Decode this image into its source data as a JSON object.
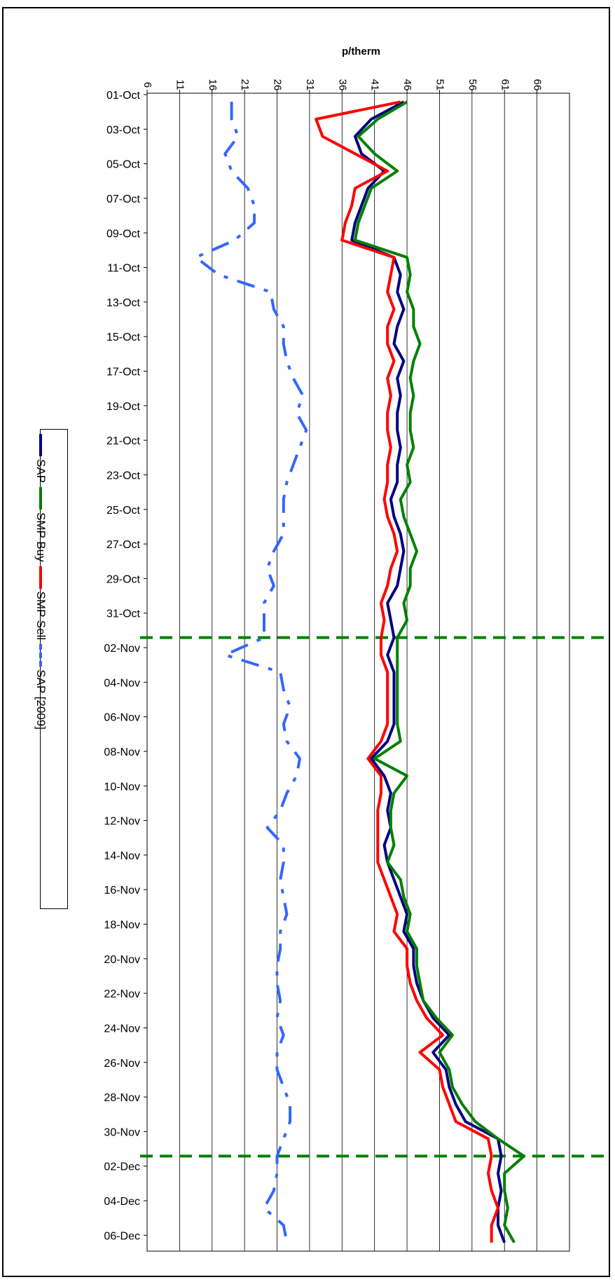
{
  "chart_data": {
    "type": "line",
    "orientation": "rotated-90",
    "title": "",
    "ylabel": "p/therm",
    "xlabel": "",
    "ylim": [
      6,
      71
    ],
    "y_ticks": [
      6,
      11,
      16,
      21,
      26,
      31,
      36,
      41,
      46,
      51,
      56,
      61,
      66
    ],
    "grid": true,
    "legend_position": "left",
    "x_tick_labels": [
      "01-Oct",
      "03-Oct",
      "05-Oct",
      "07-Oct",
      "09-Oct",
      "11-Oct",
      "13-Oct",
      "15-Oct",
      "17-Oct",
      "19-Oct",
      "21-Oct",
      "23-Oct",
      "25-Oct",
      "27-Oct",
      "29-Oct",
      "31-Oct",
      "02-Nov",
      "04-Nov",
      "06-Nov",
      "08-Nov",
      "10-Nov",
      "12-Nov",
      "14-Nov",
      "16-Nov",
      "18-Nov",
      "20-Nov",
      "22-Nov",
      "24-Nov",
      "26-Nov",
      "28-Nov",
      "30-Nov",
      "02-Dec",
      "04-Dec",
      "06-Dec"
    ],
    "x_days": 67,
    "vertical_markers": [
      31.5,
      61.5
    ],
    "series": [
      {
        "name": "SAP",
        "color": "#000080",
        "dash": "solid",
        "values": [
          45.5,
          40.5,
          38,
          39,
          42.5,
          40,
          39,
          38,
          37.5,
          44,
          45,
          44.5,
          45.5,
          44.5,
          44,
          45.5,
          44.5,
          45,
          44.5,
          44.5,
          45,
          44.5,
          44.5,
          43.5,
          44,
          45,
          45.5,
          45,
          44.5,
          43,
          43.5,
          44,
          43,
          44,
          44,
          44,
          44,
          43,
          40.5,
          42.5,
          43.5,
          43,
          43.5,
          42.5,
          43,
          44,
          45,
          46,
          45.5,
          47,
          47,
          47.5,
          48.5,
          50,
          52.5,
          50,
          52,
          52.5,
          53.5,
          55,
          60,
          60.5,
          60,
          60.5,
          60,
          60,
          61
        ]
      },
      {
        "name": "SMP Buy",
        "color": "#008000",
        "dash": "solid",
        "values": [
          46,
          41.5,
          38.5,
          41,
          44.5,
          40.5,
          39.5,
          38.5,
          38,
          46,
          46.5,
          46,
          47,
          47,
          48,
          47,
          46.5,
          47,
          46.5,
          46.5,
          47,
          46,
          46.5,
          45,
          45.5,
          46.5,
          47.5,
          46.5,
          46.5,
          45.5,
          46,
          44.5,
          44.5,
          44.5,
          44.5,
          44.5,
          44.5,
          45,
          41,
          46,
          44,
          43.5,
          43.5,
          44,
          43,
          45,
          45.5,
          46.5,
          46,
          47.5,
          47.5,
          48,
          48.5,
          50.5,
          53,
          51,
          52.5,
          53,
          54.5,
          56.5,
          60,
          64,
          61,
          61,
          61.5,
          61,
          62.5
        ]
      },
      {
        "name": "SMP Sell",
        "color": "#ff0000",
        "dash": "solid",
        "values": [
          45,
          32,
          33,
          38,
          43,
          38,
          37.5,
          36.5,
          36,
          44,
          43.5,
          43,
          44,
          43,
          43,
          44,
          43,
          43.5,
          43,
          43,
          43.5,
          43,
          43,
          42.5,
          43,
          44,
          44.5,
          43.5,
          43,
          42,
          42.5,
          42,
          42,
          43,
          43,
          43,
          43,
          42,
          40,
          42,
          42,
          41.5,
          41.5,
          41.5,
          41.5,
          42.5,
          43.5,
          44.5,
          44,
          46,
          46,
          46.5,
          47.5,
          49,
          51.5,
          48,
          51,
          51.5,
          52.5,
          53.5,
          58.5,
          59,
          58.5,
          59,
          60,
          59,
          59
        ]
      },
      {
        "name": "SAP [2009]",
        "color": "#3366ff",
        "dash": "dashed",
        "values": [
          19,
          19,
          20,
          18,
          19,
          21.5,
          22.5,
          22.5,
          19.5,
          13.5,
          17,
          25,
          25.5,
          27,
          27,
          27.5,
          28.5,
          30,
          29,
          30.5,
          29.5,
          28.5,
          27.5,
          27,
          27,
          27,
          25.5,
          24.5,
          25.5,
          24,
          24,
          24,
          18,
          26.5,
          27,
          28,
          27,
          27.5,
          29.5,
          29,
          27.5,
          26.5,
          24.5,
          27,
          27,
          26.5,
          27,
          27.5,
          26.5,
          26.5,
          26,
          26,
          26.5,
          26,
          27,
          26,
          26,
          27,
          28,
          28,
          27,
          26,
          26,
          25.5,
          24,
          27,
          27.5
        ]
      }
    ]
  }
}
